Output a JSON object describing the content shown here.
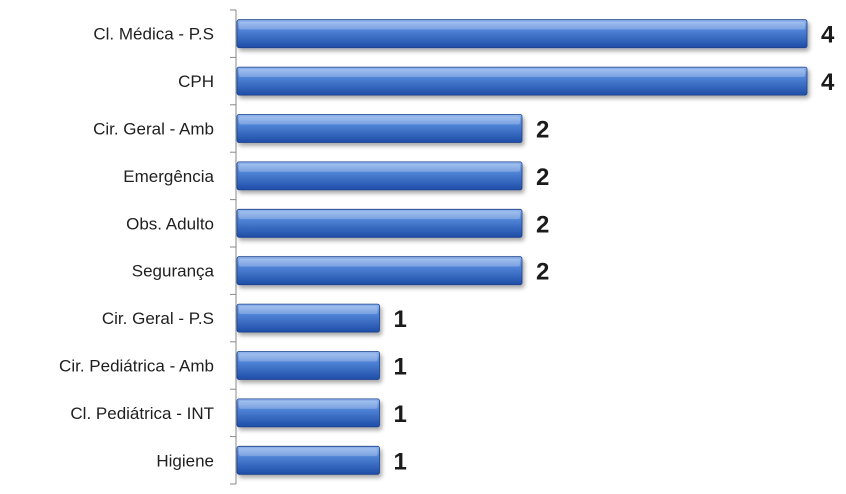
{
  "chart_data": {
    "type": "bar",
    "orientation": "horizontal",
    "categories": [
      "Cl. Médica - P.S",
      "CPH",
      "Cir. Geral - Amb",
      "Emergência",
      "Obs. Adulto",
      "Segurança",
      "Cir. Geral - P.S",
      "Cir. Pediátrica - Amb",
      "Cl. Pediátrica - INT",
      "Higiene"
    ],
    "values": [
      4,
      4,
      2,
      2,
      2,
      2,
      1,
      1,
      1,
      1
    ],
    "xlim": [
      0,
      4
    ],
    "grid": false,
    "legend": "none",
    "bar_color": "#3b6fc8"
  }
}
